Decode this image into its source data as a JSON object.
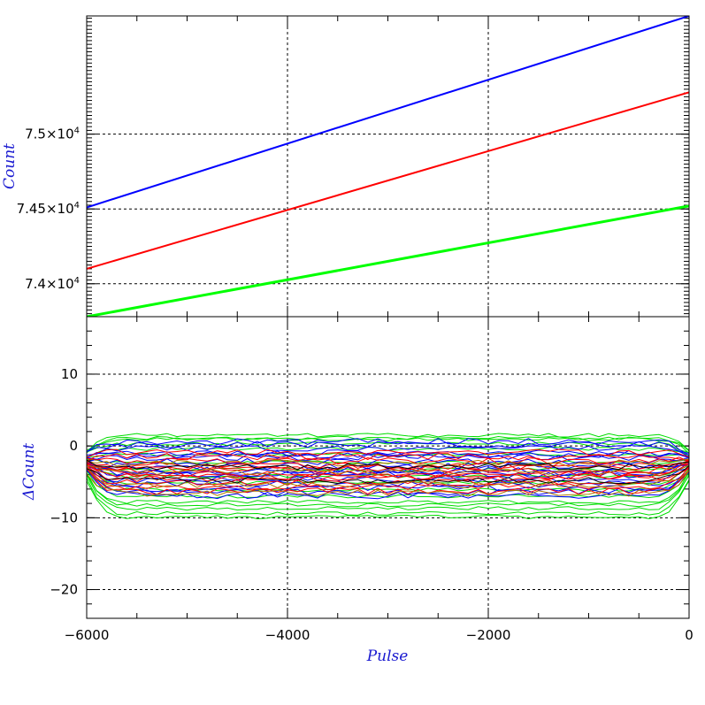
{
  "chart_data": [
    {
      "type": "line",
      "panel": "top",
      "ylabel": "Count",
      "xlim": [
        -6000,
        0
      ],
      "ylim": [
        73780,
        75790
      ],
      "x_ticks": [
        -6000,
        -4000,
        -2000,
        0
      ],
      "y_ticks": [
        74000,
        74500,
        75000
      ],
      "y_tick_labels": [
        {
          "mantissa": "7.4",
          "exponent": "4"
        },
        {
          "mantissa": "7.45",
          "exponent": "4"
        },
        {
          "mantissa": "7.5",
          "exponent": "4"
        }
      ],
      "grid": true,
      "series": [
        {
          "color": "#0000ff",
          "x": [
            -6000,
            0
          ],
          "y": [
            74510,
            75790
          ]
        },
        {
          "color": "#ff0000",
          "x": [
            -6000,
            0
          ],
          "y": [
            74100,
            75280
          ]
        },
        {
          "color": "#00ff00",
          "x": [
            -6000,
            0
          ],
          "y": [
            73780,
            74520
          ]
        }
      ]
    },
    {
      "type": "line",
      "panel": "bottom",
      "xlabel": "Pulse",
      "ylabel": "ΔCount",
      "xlim": [
        -6000,
        0
      ],
      "ylim": [
        -24,
        18
      ],
      "x_ticks": [
        -6000,
        -4000,
        -2000,
        0
      ],
      "x_tick_labels": [
        "−6000",
        "−4000",
        "−2000",
        "0"
      ],
      "y_ticks": [
        -20,
        -10,
        0,
        10
      ],
      "y_tick_labels": [
        "−20",
        "−10",
        "0",
        "10"
      ],
      "grid": true,
      "band": {
        "x_start": -6000,
        "x_end": 0,
        "n_points": 61,
        "groups": [
          {
            "color": "#00dd00",
            "offsets": [
              3.3,
              2.7,
              2.1,
              1.4,
              0.6,
              -0.5,
              -1.5,
              -2.4,
              -3.3,
              -4.3,
              -5.2,
              -6.0,
              -6.9,
              -7.6,
              -8.1,
              2.9,
              -6.4
            ]
          },
          {
            "color": "#0000ff",
            "offsets": [
              2.4,
              2.0,
              1.5,
              0.8,
              0.2,
              -0.4,
              -1.0,
              -1.6,
              -2.2,
              -2.9,
              -3.5,
              -4.1,
              -4.6,
              -5.1,
              -1.9,
              0.5
            ]
          },
          {
            "color": "#ff0000",
            "offsets": [
              0.9,
              0.3,
              -0.3,
              -0.9,
              -1.5,
              -2.1,
              -2.7,
              -3.3,
              -3.9,
              -4.5,
              -1.2,
              -2.5
            ]
          },
          {
            "color": "#b07800",
            "offsets": [
              -0.6,
              -1.8,
              -3.6,
              -4.8
            ]
          },
          {
            "color": "#000000",
            "offsets": [
              -1.1,
              -3.0
            ]
          }
        ]
      }
    }
  ]
}
